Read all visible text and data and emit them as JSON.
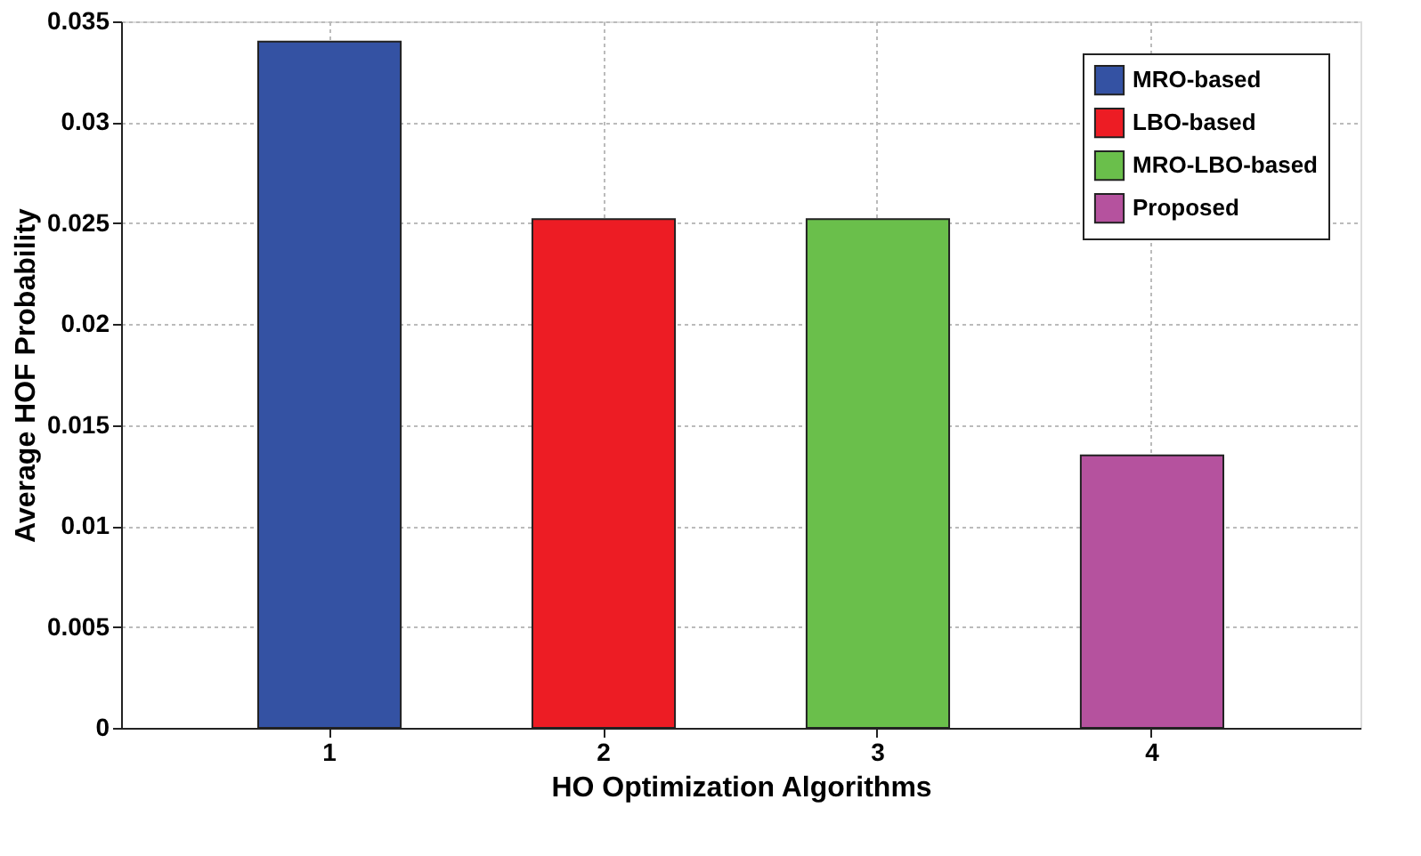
{
  "chart_data": {
    "type": "bar",
    "xlabel": "HO Optimization Algorithms",
    "ylabel": "Average HOF Probability",
    "categories": [
      "1",
      "2",
      "3",
      "4"
    ],
    "series": [
      {
        "name": "MRO-based",
        "color": "#3452a3",
        "values": [
          0.034,
          null,
          null,
          null
        ]
      },
      {
        "name": "LBO-based",
        "color": "#ed1c24",
        "values": [
          null,
          0.0252,
          null,
          null
        ]
      },
      {
        "name": "MRO-LBO-based",
        "color": "#6abf4b",
        "values": [
          null,
          null,
          0.0252,
          null
        ]
      },
      {
        "name": "Proposed",
        "color": "#b5529e",
        "values": [
          null,
          null,
          null,
          0.0135
        ]
      }
    ],
    "ylim": [
      0,
      0.035
    ],
    "yticks": [
      0,
      0.005,
      0.01,
      0.015,
      0.02,
      0.025,
      0.03,
      0.035
    ],
    "grid": true,
    "legend": "top right"
  }
}
